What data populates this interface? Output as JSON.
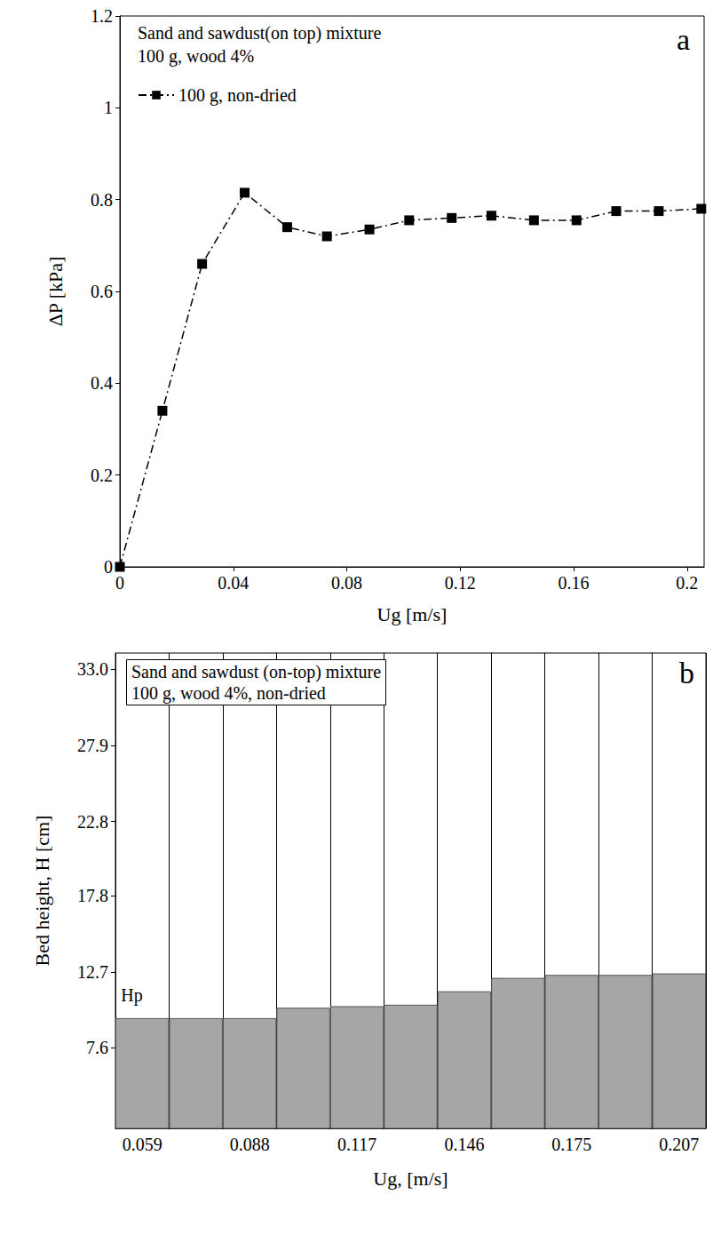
{
  "chart_data": [
    {
      "type": "line",
      "title": "Sand and sawdust(on top) mixture",
      "subtitle": "100 g, wood 4%",
      "annotations": [
        "a"
      ],
      "x_label": "Ug [m/s]",
      "y_label": "ΔP [kPa]",
      "x": [
        0,
        0.015,
        0.029,
        0.044,
        0.059,
        0.073,
        0.088,
        0.102,
        0.117,
        0.131,
        0.146,
        0.161,
        0.175,
        0.19,
        0.205
      ],
      "series": [
        {
          "name": "100 g, non-dried",
          "color": "#000000",
          "marker": "square",
          "line_style": "dashdot",
          "values": [
            0,
            0.34,
            0.66,
            0.815,
            0.74,
            0.72,
            0.735,
            0.755,
            0.76,
            0.765,
            0.755,
            0.755,
            0.775,
            0.775,
            0.78
          ]
        }
      ],
      "xlim": [
        0,
        0.206
      ],
      "xticks": [
        0,
        0.04,
        0.08,
        0.12,
        0.16,
        0.2
      ],
      "ylim": [
        0,
        1.2
      ],
      "yticks": [
        0,
        0.2,
        0.4,
        0.6,
        0.8,
        1,
        1.2
      ],
      "grid": false,
      "legend": "upper left"
    },
    {
      "type": "bar",
      "title": "Sand and sawdust (on-top) mixture",
      "subtitle": "100 g, wood 4%, non-dried",
      "annotations": [
        "b",
        "Hp"
      ],
      "x_label": "Ug, [m/s]",
      "y_label": "Bed height, H [cm]",
      "categories": [
        "0.059",
        null,
        "0.088",
        null,
        "0.117",
        null,
        "0.146",
        null,
        "0.175",
        null,
        "0.207"
      ],
      "values": [
        9.6,
        9.6,
        9.6,
        10.3,
        10.4,
        10.5,
        11.4,
        12.3,
        12.5,
        12.5,
        12.6
      ],
      "color": "#a6a6a6",
      "ylim": [
        2.2,
        34.1
      ],
      "yticks": [
        7.6,
        12.7,
        17.8,
        22.8,
        27.9,
        {
          "value": 33,
          "label": "33.0"
        }
      ],
      "grid": true
    }
  ]
}
